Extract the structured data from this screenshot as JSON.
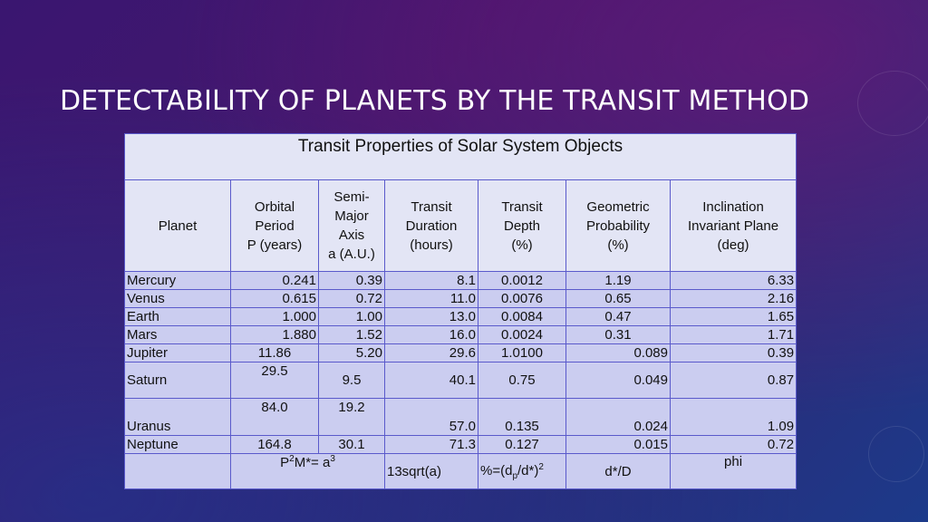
{
  "slide": {
    "title": "DETECTABILITY OF PLANETS BY THE TRANSIT METHOD"
  },
  "table": {
    "caption": "Transit Properties of Solar System Objects",
    "headers": {
      "planet": "Planet",
      "period": [
        "Orbital",
        "Period",
        "P (years)"
      ],
      "axis": [
        "Semi-",
        "Major",
        "Axis",
        "a (A.U.)"
      ],
      "duration": [
        "Transit",
        "Duration",
        "(hours)"
      ],
      "depth": [
        "Transit",
        "Depth",
        "(%)"
      ],
      "probability": [
        "Geometric",
        "Probability",
        "(%)"
      ],
      "inclination": [
        "Inclination",
        "Invariant Plane",
        "(deg)"
      ]
    },
    "rows": [
      {
        "planet": "Mercury",
        "period": "0.241",
        "axis": "0.39",
        "duration": "8.1",
        "depth": "0.0012",
        "probability": "1.19",
        "inclination": "6.33"
      },
      {
        "planet": "Venus",
        "period": "0.615",
        "axis": "0.72",
        "duration": "11.0",
        "depth": "0.0076",
        "probability": "0.65",
        "inclination": "2.16"
      },
      {
        "planet": "Earth",
        "period": "1.000",
        "axis": "1.00",
        "duration": "13.0",
        "depth": "0.0084",
        "probability": "0.47",
        "inclination": "1.65"
      },
      {
        "planet": "Mars",
        "period": "1.880",
        "axis": "1.52",
        "duration": "16.0",
        "depth": "0.0024",
        "probability": "0.31",
        "inclination": "1.71"
      },
      {
        "planet": "Jupiter",
        "period": "11.86",
        "axis": "5.20",
        "duration": "29.6",
        "depth": "1.0100",
        "probability": "0.089",
        "inclination": "0.39"
      },
      {
        "planet": "Saturn",
        "period": "29.5",
        "axis": "9.5",
        "duration": "40.1",
        "depth": "0.75",
        "probability": "0.049",
        "inclination": "0.87"
      },
      {
        "planet": "Uranus",
        "period": "84.0",
        "axis": "19.2",
        "duration": "57.0",
        "depth": "0.135",
        "probability": "0.024",
        "inclination": "1.09"
      },
      {
        "planet": "Neptune",
        "period": "164.8",
        "axis": "30.1",
        "duration": "71.3",
        "depth": "0.127",
        "probability": "0.015",
        "inclination": "0.72"
      }
    ],
    "footer": {
      "kepler_prefix": "P",
      "kepler_exp1": "2",
      "kepler_mid": "M*= a",
      "kepler_exp2": "3",
      "duration_formula": "13sqrt(a)",
      "depth_prefix": "%=(d",
      "depth_sub": "p",
      "depth_mid": "/d*)",
      "depth_exp": "2",
      "probability_formula": "d*/D",
      "inclination_formula": "phi"
    }
  },
  "colors": {
    "background_top": "#43186e",
    "background_bottom": "#1c3a8a",
    "table_header_fill": "#e3e5f5",
    "table_body_fill": "#cbcdf0",
    "table_border": "#5a5acb",
    "title_text": "#ffffff"
  }
}
